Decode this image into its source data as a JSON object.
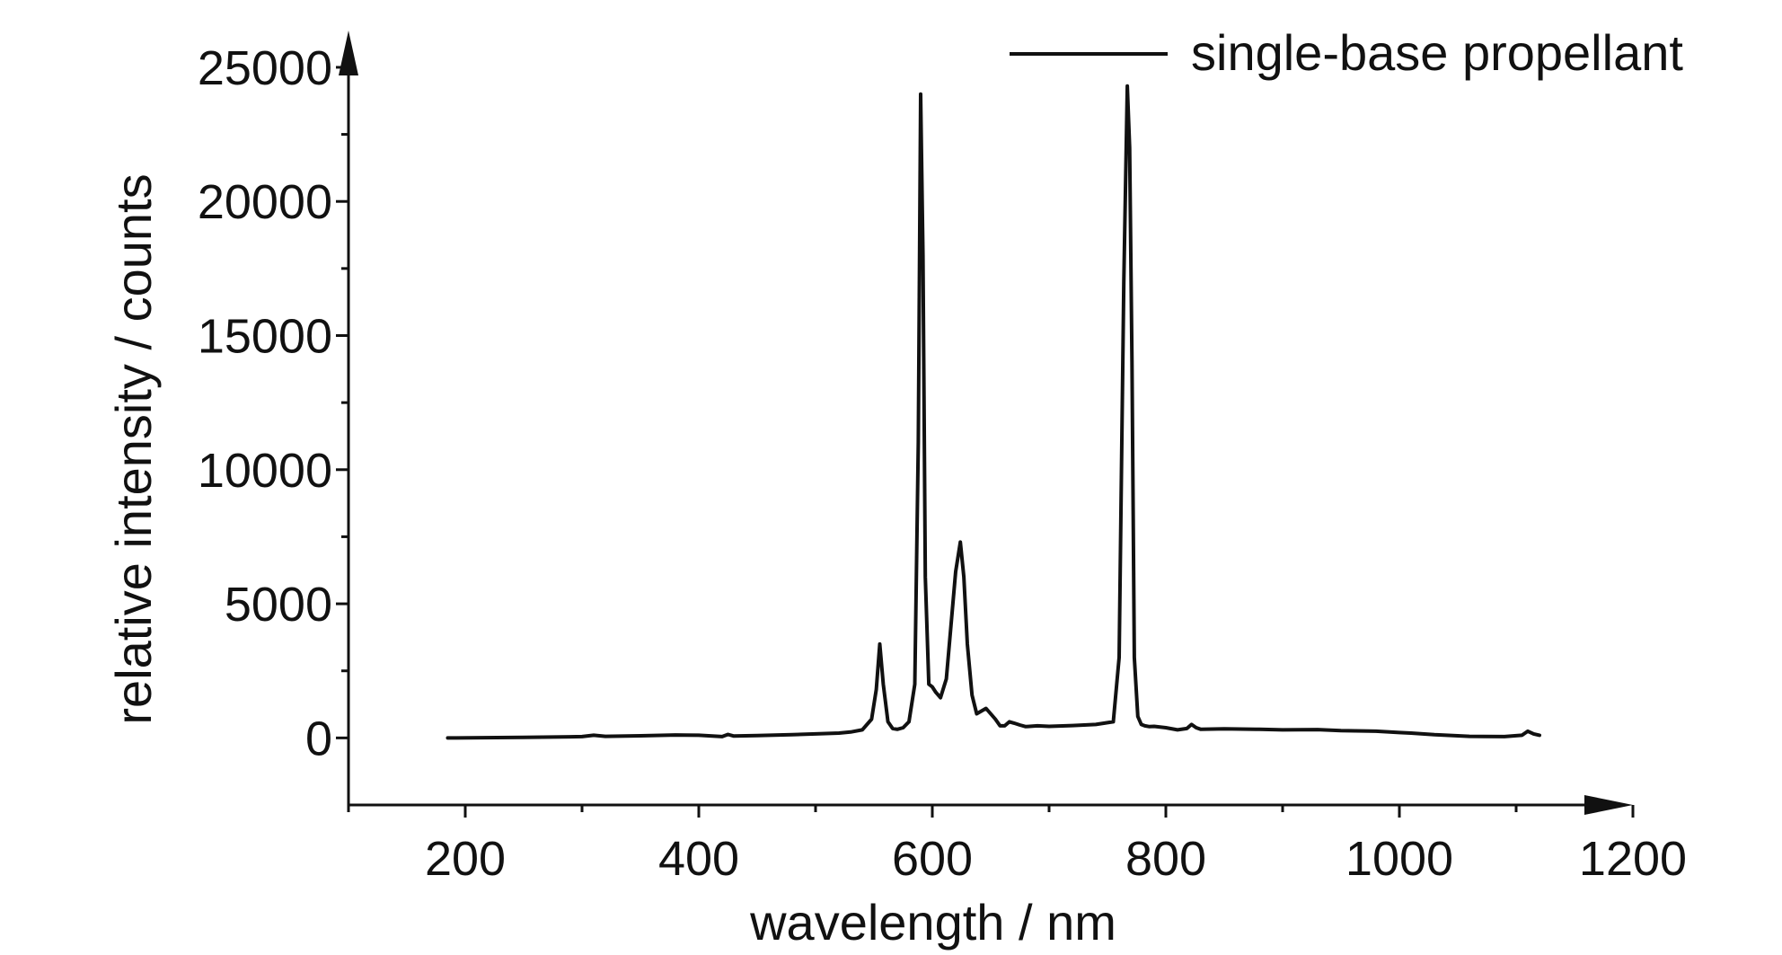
{
  "chart_data": {
    "type": "line",
    "title": "",
    "xlabel": "wavelength / nm",
    "ylabel": "relative intensity / counts",
    "xlim": [
      100,
      1200
    ],
    "ylim": [
      -2500,
      25500
    ],
    "xticks": [
      200,
      400,
      600,
      800,
      1000,
      1200
    ],
    "yticks": [
      0,
      5000,
      10000,
      15000,
      20000,
      25000
    ],
    "grid": false,
    "legend_position": "top-right",
    "colors": {
      "line": "#111111",
      "axis": "#111111"
    },
    "series": [
      {
        "name": "single-base propellant",
        "x": [
          185,
          250,
          300,
          310,
          320,
          350,
          380,
          400,
          420,
          425,
          430,
          450,
          480,
          500,
          520,
          530,
          540,
          548,
          552,
          555,
          558,
          562,
          566,
          570,
          575,
          580,
          585,
          588,
          590,
          592,
          594,
          597,
          600,
          603,
          607,
          612,
          616,
          620,
          624,
          627,
          630,
          634,
          638,
          642,
          646,
          650,
          654,
          658,
          662,
          666,
          670,
          675,
          680,
          690,
          700,
          720,
          740,
          755,
          760,
          764,
          767,
          769,
          771,
          773,
          776,
          779,
          782,
          786,
          790,
          800,
          810,
          818,
          822,
          826,
          830,
          850,
          880,
          900,
          930,
          950,
          980,
          1000,
          1010,
          1030,
          1060,
          1090,
          1105,
          1110,
          1115,
          1120
        ],
        "y": [
          0,
          20,
          50,
          100,
          60,
          80,
          110,
          100,
          50,
          130,
          70,
          90,
          120,
          150,
          180,
          220,
          300,
          700,
          1800,
          3500,
          2000,
          600,
          350,
          320,
          380,
          600,
          2000,
          11000,
          24000,
          18000,
          6000,
          2000,
          1900,
          1700,
          1500,
          2200,
          4200,
          6200,
          7300,
          6000,
          3500,
          1600,
          900,
          1000,
          1100,
          900,
          700,
          450,
          450,
          600,
          550,
          480,
          420,
          450,
          430,
          460,
          500,
          600,
          3000,
          17000,
          24300,
          22000,
          14000,
          3000,
          800,
          500,
          450,
          420,
          430,
          380,
          300,
          350,
          500,
          380,
          320,
          340,
          320,
          300,
          310,
          270,
          250,
          200,
          180,
          120,
          60,
          50,
          100,
          250,
          150,
          100
        ]
      }
    ]
  }
}
